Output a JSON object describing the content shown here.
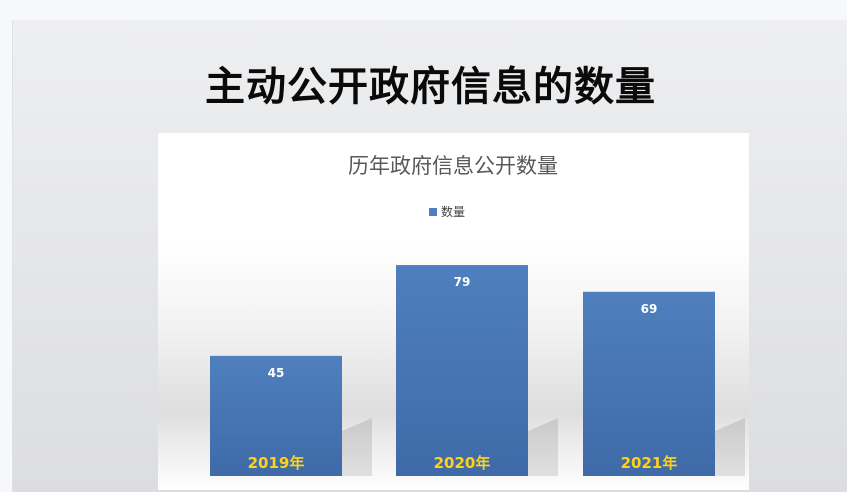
{
  "slide": {
    "title": "主动公开政府信息的数量"
  },
  "colors": {
    "bar": "#4f7fbe",
    "bar_dark": "#3f6aa8",
    "category_label": "#ffd21a",
    "data_label": "#ffffff",
    "title_text": "#595959",
    "legend_text": "#404040"
  },
  "chart_data": {
    "type": "bar",
    "title": "历年政府信息公开数量",
    "categories": [
      "2019年",
      "2020年",
      "2021年"
    ],
    "series": [
      {
        "name": "数量",
        "values": [
          45,
          79,
          69
        ]
      }
    ],
    "ylim": [
      0,
      100
    ],
    "grid": false,
    "legend_position": "top",
    "xlabel": "",
    "ylabel": ""
  }
}
